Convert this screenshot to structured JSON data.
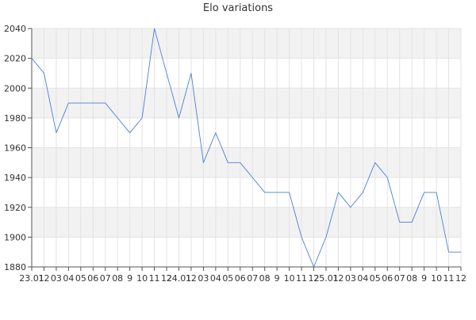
{
  "chart_data": {
    "type": "line",
    "title": "Elo variations",
    "ylim": [
      1880,
      2040
    ],
    "y_ticks": [
      1880,
      1900,
      1920,
      1940,
      1960,
      1980,
      2000,
      2020,
      2040
    ],
    "x_tick_labels": [
      "23.01",
      "12",
      "03",
      "04",
      "05",
      "06",
      "07",
      "08",
      "9",
      "10",
      "11",
      "12",
      "24.01",
      "12",
      "03",
      "04",
      "05",
      "06",
      "07",
      "08",
      "9",
      "10",
      "11",
      "12",
      "25.01",
      "12",
      "03",
      "04",
      "05",
      "06",
      "07",
      "08",
      "9",
      "10",
      "11",
      "12"
    ],
    "grid": true,
    "alternating_bands": true,
    "line_color": "#4a7fd8",
    "band_color": "#f2f2f2",
    "series": [
      {
        "values": [
          2020,
          2010,
          1970,
          1990,
          1990,
          1990,
          1990,
          1980,
          1970,
          1980,
          2040,
          2010,
          1980,
          2010,
          1950,
          1970,
          1950,
          1950,
          1940,
          1930,
          1930,
          1930,
          1900,
          1880,
          1900,
          1930,
          1920,
          1930,
          1950,
          1940,
          1910,
          1910,
          1930,
          1930,
          1890,
          1890
        ]
      }
    ]
  }
}
